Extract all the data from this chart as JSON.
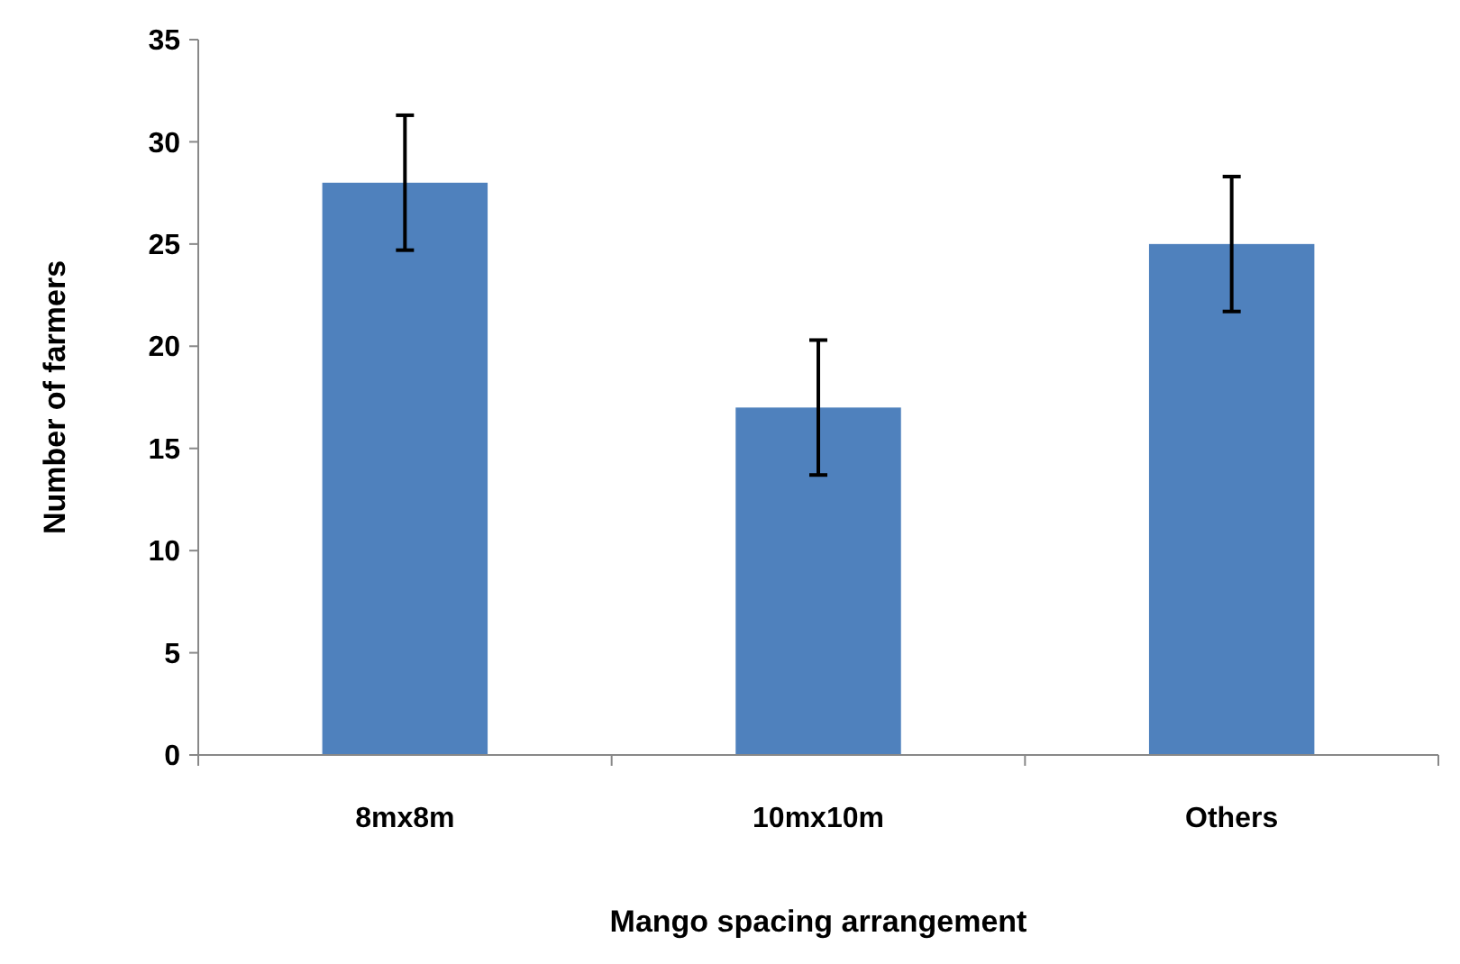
{
  "chart_data": {
    "type": "bar",
    "xlabel": "Mango spacing arrangement",
    "ylabel": "Number of farmers",
    "categories": [
      "8mx8m",
      "10mx10m",
      "Others"
    ],
    "values": [
      28,
      17,
      25
    ],
    "errors": [
      3.3,
      3.3,
      3.3
    ],
    "color": "#4f81bd",
    "ylim": [
      0,
      35
    ],
    "yticks": [
      0,
      5,
      10,
      15,
      20,
      25,
      30,
      35
    ],
    "grid": false
  }
}
